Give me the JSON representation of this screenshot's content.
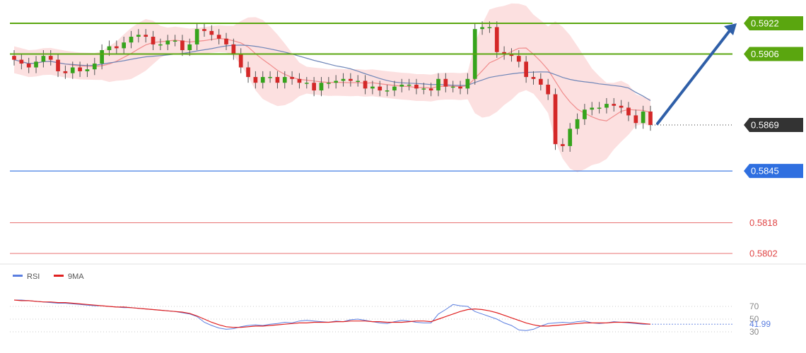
{
  "colors": {
    "bull": "#36a41c",
    "bear": "#d42828",
    "band_fill": "#fbd3d3",
    "ma_fast": "#f08c8c",
    "ma_slow": "#6f86b8",
    "resistance": "#5aa60f",
    "support": "#2f6fe0",
    "target_red": "#e04545",
    "arrow": "#2f5fa8",
    "current_tag": "#333333",
    "rsi": "#5a7ee0",
    "rsi_ma": "#e02020"
  },
  "chart_data": {
    "type": "line",
    "price_axis": {
      "levels": [
        {
          "value": 0.5922,
          "label": "0.5922",
          "kind": "resistance"
        },
        {
          "value": 0.5906,
          "label": "0.5906",
          "kind": "resistance"
        },
        {
          "value": 0.5869,
          "label": "0.5869",
          "kind": "current"
        },
        {
          "value": 0.5845,
          "label": "0.5845",
          "kind": "support"
        },
        {
          "value": 0.5818,
          "label": "0.5818",
          "kind": "target"
        },
        {
          "value": 0.5802,
          "label": "0.5802",
          "kind": "target"
        }
      ]
    },
    "forecast_arrow": {
      "from": 0.5869,
      "to": 0.5922,
      "direction": "up"
    },
    "candles_close": [
      0.5903,
      0.5901,
      0.5899,
      0.5902,
      0.5905,
      0.5903,
      0.5897,
      0.5896,
      0.5899,
      0.5897,
      0.5898,
      0.5901,
      0.5908,
      0.591,
      0.5909,
      0.5912,
      0.5915,
      0.5916,
      0.5915,
      0.5911,
      0.5911,
      0.5913,
      0.5913,
      0.5908,
      0.5911,
      0.5919,
      0.5918,
      0.5916,
      0.5914,
      0.5911,
      0.5906,
      0.5899,
      0.5894,
      0.5891,
      0.5894,
      0.5894,
      0.5891,
      0.5894,
      0.5893,
      0.5891,
      0.5891,
      0.5887,
      0.5891,
      0.5891,
      0.5892,
      0.5893,
      0.5892,
      0.5892,
      0.5888,
      0.5889,
      0.5887,
      0.5887,
      0.5889,
      0.589,
      0.589,
      0.5888,
      0.5888,
      0.5887,
      0.5893,
      0.5889,
      0.5889,
      0.5888,
      0.5893,
      0.5919,
      0.592,
      0.592,
      0.5907,
      0.5906,
      0.5905,
      0.5902,
      0.5894,
      0.5893,
      0.589,
      0.5885,
      0.5859,
      0.5858,
      0.5867,
      0.5872,
      0.5877,
      0.5878,
      0.5878,
      0.588,
      0.5879,
      0.5878,
      0.5874,
      0.587,
      0.5876,
      0.5869
    ],
    "rsi": {
      "legend": [
        {
          "name": "RSI"
        },
        {
          "name": "9MA"
        }
      ],
      "ticks": [
        70,
        50,
        30
      ],
      "current_label": "41.99",
      "values": [
        80,
        80,
        79,
        78,
        77,
        76,
        75,
        75,
        74,
        73,
        72,
        71,
        71,
        70,
        69,
        68,
        68,
        67,
        66,
        65,
        64,
        63,
        62,
        60,
        58,
        54,
        45,
        40,
        36,
        34,
        35,
        38,
        40,
        41,
        40,
        42,
        43,
        45,
        44,
        47,
        48,
        47,
        46,
        45,
        47,
        46,
        49,
        50,
        48,
        46,
        44,
        43,
        46,
        48,
        47,
        45,
        44,
        44,
        58,
        65,
        73,
        71,
        70,
        62,
        58,
        54,
        50,
        44,
        40,
        33,
        32,
        34,
        39,
        43,
        44,
        45,
        44,
        46,
        47,
        44,
        43,
        44,
        46,
        45,
        44,
        43,
        42,
        42
      ],
      "ma": [
        80,
        79,
        79,
        78,
        77,
        77,
        76,
        76,
        75,
        74,
        73,
        72,
        71,
        70,
        69,
        69,
        68,
        67,
        66,
        65,
        64,
        63,
        62,
        61,
        59,
        55,
        50,
        45,
        41,
        38,
        37,
        37,
        38,
        39,
        39,
        40,
        41,
        42,
        43,
        44,
        44,
        45,
        45,
        45,
        46,
        46,
        47,
        47,
        47,
        46,
        46,
        45,
        45,
        45,
        46,
        47,
        47,
        46,
        50,
        54,
        58,
        62,
        65,
        66,
        65,
        63,
        60,
        56,
        52,
        48,
        44,
        41,
        39,
        39,
        40,
        41,
        42,
        43,
        44,
        44,
        44,
        44,
        45,
        45,
        45,
        44,
        43,
        42
      ]
    }
  }
}
